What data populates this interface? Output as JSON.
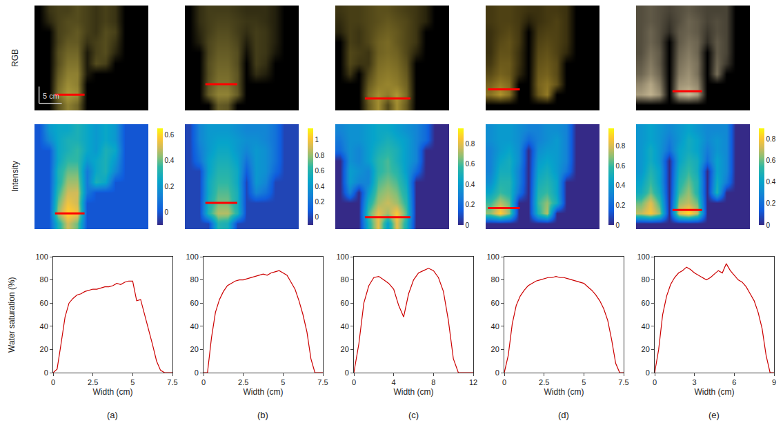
{
  "row_labels": [
    "RGB",
    "Intensity"
  ],
  "scale_bar": {
    "label": "5 cm",
    "length": 5
  },
  "image_size_cm": {
    "width": 25,
    "height": 22
  },
  "chart_data": [
    {
      "type": "line",
      "panel": "(a)",
      "xlabel": "Width (cm)",
      "ylabel": "Water saturation (%)",
      "grid": false,
      "x": [
        0,
        0.25,
        0.5,
        0.75,
        1,
        1.25,
        1.5,
        1.75,
        2,
        2.25,
        2.5,
        2.75,
        3,
        3.25,
        3.5,
        3.75,
        4,
        4.25,
        4.5,
        4.75,
        5,
        5.25,
        5.5,
        5.75,
        6,
        6.25,
        6.5,
        6.75,
        7,
        7.25,
        7.5
      ],
      "series": [
        {
          "color": "#cc0000",
          "values": [
            0,
            3,
            25,
            48,
            60,
            64,
            67,
            68,
            70,
            71,
            72,
            72,
            73,
            74,
            74,
            75,
            77,
            76,
            78,
            79,
            79,
            62,
            63,
            50,
            38,
            24,
            10,
            2,
            0,
            0,
            0
          ]
        }
      ],
      "xlim": [
        0,
        7.5
      ],
      "xticks": [
        0,
        2.5,
        5,
        7.5
      ],
      "ylim": [
        0,
        100
      ],
      "yticks": [
        0,
        20,
        40,
        60,
        80,
        100
      ],
      "images": {
        "color": "#b8a640",
        "zlim": [
          -0.1,
          0.65
        ],
        "zticks": [
          0,
          0.2,
          0.4,
          0.6
        ],
        "section": {
          "y": 18.7,
          "x": [
            4.5,
            11
          ],
          "color": "#ff0000"
        },
        "cells": [
          [
            0,
            0.2,
            0.25,
            0.25,
            0.3,
            0.25,
            0.2,
            0.25,
            0.2,
            0,
            0,
            0
          ],
          [
            0,
            0.15,
            0.25,
            0.3,
            0.3,
            0.25,
            0.2,
            0.25,
            0.2,
            0,
            0,
            0
          ],
          [
            0,
            0,
            0.25,
            0.3,
            0.35,
            0.25,
            0.2,
            0.3,
            0.25,
            0,
            0,
            0
          ],
          [
            0,
            0,
            0.25,
            0.35,
            0.35,
            0.2,
            0.25,
            0.3,
            0.2,
            0,
            0,
            0
          ],
          [
            0,
            0,
            0.3,
            0.4,
            0.4,
            0.1,
            0.25,
            0.3,
            0.15,
            0,
            0,
            0
          ],
          [
            0,
            0,
            0.3,
            0.45,
            0.45,
            0.1,
            0.3,
            0.25,
            0,
            0,
            0,
            0
          ],
          [
            0,
            0,
            0.35,
            0.5,
            0.5,
            0.1,
            0,
            0,
            0,
            0,
            0,
            0
          ],
          [
            0,
            0,
            0.4,
            0.55,
            0.5,
            0,
            0,
            0,
            0,
            0,
            0,
            0
          ],
          [
            0,
            0,
            0.45,
            0.6,
            0.55,
            0,
            0,
            0,
            0,
            0,
            0,
            0
          ],
          [
            0,
            0,
            0.3,
            0.5,
            0.4,
            0,
            0,
            0,
            0,
            0,
            0,
            0
          ]
        ]
      }
    },
    {
      "type": "line",
      "panel": "(b)",
      "xlabel": "Width (cm)",
      "grid": false,
      "x": [
        0,
        0.25,
        0.5,
        0.75,
        1,
        1.25,
        1.5,
        1.75,
        2,
        2.25,
        2.5,
        2.75,
        3,
        3.25,
        3.5,
        3.75,
        4,
        4.25,
        4.5,
        4.75,
        5,
        5.25,
        5.5,
        5.75,
        6,
        6.25,
        6.5,
        6.75,
        7,
        7.25,
        7.5
      ],
      "series": [
        {
          "color": "#cc0000",
          "values": [
            0,
            0,
            30,
            52,
            63,
            70,
            75,
            77,
            79,
            80,
            80,
            81,
            82,
            83,
            84,
            85,
            84,
            86,
            87,
            88,
            86,
            84,
            78,
            72,
            62,
            50,
            35,
            12,
            0,
            0,
            0
          ]
        }
      ],
      "xlim": [
        0,
        7.5
      ],
      "xticks": [
        0,
        2.5,
        5,
        7.5
      ],
      "ylim": [
        0,
        100
      ],
      "yticks": [
        0,
        20,
        40,
        60,
        80,
        100
      ],
      "images": {
        "color": "#c2b048",
        "zlim": [
          -0.1,
          1.15
        ],
        "zticks": [
          0,
          0.2,
          0.4,
          0.6,
          0.8,
          1
        ],
        "section": {
          "y": 16.5,
          "x": [
            4.5,
            11.5
          ],
          "color": "#ff0000"
        },
        "cells": [
          [
            0,
            0.3,
            0.4,
            0.4,
            0.4,
            0.35,
            0.3,
            0.3,
            0.3,
            0.2,
            0,
            0
          ],
          [
            0,
            0.3,
            0.4,
            0.45,
            0.45,
            0.4,
            0.35,
            0.35,
            0.3,
            0.2,
            0,
            0
          ],
          [
            0,
            0.25,
            0.4,
            0.5,
            0.5,
            0.4,
            0.3,
            0.4,
            0.35,
            0.2,
            0,
            0
          ],
          [
            0,
            0.2,
            0.45,
            0.55,
            0.55,
            0.45,
            0.2,
            0.4,
            0.35,
            0.2,
            0,
            0
          ],
          [
            0,
            0,
            0.45,
            0.6,
            0.6,
            0.5,
            0.1,
            0.4,
            0.35,
            0.15,
            0,
            0
          ],
          [
            0,
            0,
            0.5,
            0.65,
            0.65,
            0.5,
            0,
            0.4,
            0.3,
            0,
            0,
            0
          ],
          [
            0,
            0,
            0.5,
            0.7,
            0.7,
            0.55,
            0,
            0.3,
            0.2,
            0,
            0,
            0
          ],
          [
            0,
            0,
            0.55,
            0.75,
            0.75,
            0.55,
            0,
            0,
            0,
            0,
            0,
            0
          ],
          [
            0,
            0,
            0.6,
            0.85,
            0.85,
            0.6,
            0,
            0,
            0,
            0,
            0,
            0
          ],
          [
            0,
            0,
            0,
            0.6,
            0.55,
            0,
            0,
            0,
            0,
            0,
            0,
            0
          ]
        ]
      }
    },
    {
      "type": "line",
      "panel": "(c)",
      "xlabel": "Width (cm)",
      "grid": false,
      "x": [
        0,
        0.5,
        1,
        1.5,
        2,
        2.5,
        3,
        3.5,
        4,
        4.5,
        5,
        5.5,
        6,
        6.5,
        7,
        7.5,
        8,
        8.5,
        9,
        9.5,
        10,
        10.5,
        11,
        11.5,
        12
      ],
      "series": [
        {
          "color": "#cc0000",
          "values": [
            0,
            25,
            60,
            75,
            82,
            83,
            80,
            77,
            72,
            58,
            48,
            68,
            80,
            86,
            88,
            90,
            88,
            82,
            70,
            45,
            12,
            0,
            0,
            0,
            0
          ]
        }
      ],
      "xlim": [
        0,
        12
      ],
      "xticks": [
        0,
        4,
        8,
        12
      ],
      "ylim": [
        0,
        100
      ],
      "yticks": [
        0,
        20,
        40,
        60,
        80,
        100
      ],
      "images": {
        "color": "#c0a83a",
        "zlim": [
          0,
          0.95
        ],
        "zticks": [
          0,
          0.2,
          0.4,
          0.6,
          0.8
        ],
        "section": {
          "y": 19.5,
          "x": [
            6.5,
            16.5
          ],
          "color": "#ff0000"
        },
        "cells": [
          [
            0.3,
            0.35,
            0.35,
            0.4,
            0.45,
            0.45,
            0.4,
            0.35,
            0.3,
            0.2,
            0,
            0
          ],
          [
            0.25,
            0.35,
            0.35,
            0.4,
            0.45,
            0.5,
            0.45,
            0.4,
            0.3,
            0.2,
            0,
            0
          ],
          [
            0.2,
            0.35,
            0.3,
            0.4,
            0.5,
            0.55,
            0.5,
            0.4,
            0.3,
            0,
            0,
            0
          ],
          [
            0,
            0.35,
            0.3,
            0.4,
            0.55,
            0.6,
            0.5,
            0.4,
            0.3,
            0,
            0,
            0
          ],
          [
            0,
            0.4,
            0.35,
            0.3,
            0.55,
            0.6,
            0.55,
            0.4,
            0.2,
            0,
            0,
            0
          ],
          [
            0,
            0.4,
            0.3,
            0.3,
            0.6,
            0.65,
            0.6,
            0.45,
            0,
            0,
            0,
            0
          ],
          [
            0,
            0.3,
            0,
            0.4,
            0.65,
            0.7,
            0.65,
            0.5,
            0,
            0,
            0,
            0
          ],
          [
            0,
            0,
            0,
            0.5,
            0.7,
            0.75,
            0.7,
            0.55,
            0,
            0,
            0,
            0
          ],
          [
            0,
            0,
            0,
            0.6,
            0.8,
            0.7,
            0.85,
            0.6,
            0,
            0,
            0,
            0
          ],
          [
            0,
            0,
            0,
            0.5,
            0.8,
            0.4,
            0.8,
            0.5,
            0,
            0,
            0,
            0
          ]
        ]
      }
    },
    {
      "type": "line",
      "panel": "(d)",
      "xlabel": "Width (cm)",
      "grid": false,
      "x": [
        0,
        0.25,
        0.5,
        0.75,
        1,
        1.25,
        1.5,
        1.75,
        2,
        2.25,
        2.5,
        2.75,
        3,
        3.25,
        3.5,
        3.75,
        4,
        4.25,
        4.5,
        4.75,
        5,
        5.25,
        5.5,
        5.75,
        6,
        6.25,
        6.5,
        6.75,
        7,
        7.25,
        7.5
      ],
      "series": [
        {
          "color": "#cc0000",
          "values": [
            0,
            15,
            42,
            58,
            66,
            71,
            75,
            77,
            79,
            80,
            81,
            82,
            82,
            83,
            82,
            82,
            81,
            80,
            79,
            78,
            77,
            74,
            71,
            67,
            62,
            55,
            45,
            28,
            8,
            0,
            0
          ]
        }
      ],
      "xlim": [
        0,
        7.5
      ],
      "xticks": [
        0,
        2.5,
        5,
        7.5
      ],
      "ylim": [
        0,
        100
      ],
      "yticks": [
        0,
        20,
        40,
        60,
        80,
        100
      ],
      "images": {
        "color": "#c0a030",
        "zlim": [
          0,
          0.98
        ],
        "zticks": [
          0,
          0.2,
          0.4,
          0.6,
          0.8
        ],
        "section": {
          "y": 17.6,
          "x": [
            0.5,
            7.5
          ],
          "color": "#ff0000"
        },
        "cells": [
          [
            0.35,
            0.4,
            0.4,
            0.35,
            0.3,
            0.3,
            0.35,
            0.35,
            0.3,
            0,
            0,
            0
          ],
          [
            0.35,
            0.4,
            0.4,
            0.35,
            0.2,
            0.3,
            0.35,
            0.4,
            0.3,
            0,
            0,
            0
          ],
          [
            0.3,
            0.4,
            0.45,
            0.35,
            0,
            0.35,
            0.4,
            0.4,
            0.3,
            0,
            0,
            0
          ],
          [
            0.3,
            0.45,
            0.5,
            0.35,
            0,
            0.4,
            0.45,
            0.4,
            0.3,
            0,
            0,
            0
          ],
          [
            0.3,
            0.5,
            0.5,
            0.3,
            0,
            0.45,
            0.5,
            0.4,
            0.25,
            0,
            0,
            0
          ],
          [
            0.35,
            0.55,
            0.55,
            0.3,
            0,
            0.5,
            0.55,
            0.45,
            0,
            0,
            0,
            0
          ],
          [
            0.45,
            0.6,
            0.55,
            0.25,
            0,
            0.55,
            0.6,
            0.45,
            0,
            0,
            0,
            0
          ],
          [
            0.6,
            0.75,
            0.65,
            0,
            0,
            0.6,
            0.7,
            0.5,
            0,
            0,
            0,
            0
          ],
          [
            0.7,
            0.9,
            0.7,
            0,
            0,
            0.55,
            0.75,
            0,
            0,
            0,
            0,
            0
          ],
          [
            0,
            0,
            0,
            0,
            0,
            0,
            0,
            0,
            0,
            0,
            0,
            0
          ]
        ]
      }
    },
    {
      "type": "line",
      "panel": "(e)",
      "xlabel": "Width (cm)",
      "grid": false,
      "x": [
        0,
        0.3,
        0.6,
        0.9,
        1.2,
        1.5,
        1.8,
        2.1,
        2.4,
        2.7,
        3,
        3.3,
        3.6,
        3.9,
        4.2,
        4.5,
        4.8,
        5.1,
        5.4,
        5.7,
        6,
        6.3,
        6.6,
        6.9,
        7.2,
        7.5,
        7.8,
        8.1,
        8.4,
        8.7,
        9
      ],
      "series": [
        {
          "color": "#cc0000",
          "values": [
            0,
            20,
            50,
            66,
            76,
            82,
            86,
            88,
            91,
            89,
            86,
            84,
            82,
            80,
            82,
            85,
            88,
            86,
            94,
            88,
            84,
            80,
            78,
            74,
            68,
            62,
            52,
            38,
            15,
            0,
            0
          ]
        }
      ],
      "xlim": [
        0,
        9
      ],
      "xticks": [
        0,
        3,
        6,
        9
      ],
      "ylim": [
        0,
        100
      ],
      "yticks": [
        0,
        20,
        40,
        60,
        80,
        100
      ],
      "images": {
        "color": "#d8c8a0",
        "zlim": [
          0,
          0.9
        ],
        "zticks": [
          0,
          0.2,
          0.4,
          0.6,
          0.8
        ],
        "section": {
          "y": 18,
          "x": [
            8,
            14.5
          ],
          "color": "#ff0000"
        },
        "cells": [
          [
            0.35,
            0.4,
            0.35,
            0.3,
            0.35,
            0.4,
            0.35,
            0.3,
            0.3,
            0.3,
            0,
            0
          ],
          [
            0.35,
            0.4,
            0.35,
            0.25,
            0.35,
            0.45,
            0.4,
            0.3,
            0.35,
            0.3,
            0,
            0
          ],
          [
            0.35,
            0.45,
            0.35,
            0.2,
            0.4,
            0.45,
            0.4,
            0.25,
            0.35,
            0.3,
            0,
            0
          ],
          [
            0.35,
            0.45,
            0.35,
            0,
            0.4,
            0.5,
            0.45,
            0.2,
            0.4,
            0.3,
            0,
            0
          ],
          [
            0.35,
            0.5,
            0.4,
            0,
            0.45,
            0.55,
            0.45,
            0,
            0.4,
            0.3,
            0,
            0
          ],
          [
            0.4,
            0.55,
            0.4,
            0,
            0.5,
            0.6,
            0.5,
            0,
            0.45,
            0.25,
            0,
            0
          ],
          [
            0.45,
            0.6,
            0.45,
            0,
            0.55,
            0.65,
            0.5,
            0,
            0.5,
            0,
            0,
            0
          ],
          [
            0.6,
            0.75,
            0.55,
            0,
            0.65,
            0.7,
            0.6,
            0,
            0,
            0,
            0,
            0
          ],
          [
            0.7,
            0.8,
            0.65,
            0,
            0.75,
            0.85,
            0.7,
            0,
            0,
            0,
            0,
            0
          ],
          [
            0,
            0,
            0,
            0,
            0,
            0,
            0,
            0,
            0,
            0,
            0,
            0
          ]
        ]
      }
    }
  ]
}
